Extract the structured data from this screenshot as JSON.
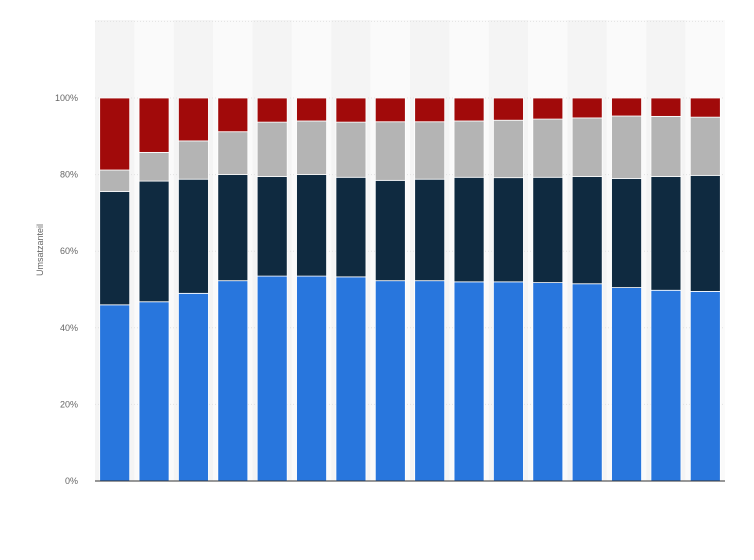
{
  "chart_data": {
    "type": "bar",
    "stacked": true,
    "ylabel": "Umsatzanteil",
    "ylim": [
      0,
      100
    ],
    "yticks": [
      "0%",
      "20%",
      "40%",
      "60%",
      "80%",
      "100%"
    ],
    "bar_count": 16,
    "series": [
      {
        "values": [
          46,
          46.8,
          49,
          52.3,
          53.5,
          53.5,
          53.3,
          52.3,
          52.3,
          52,
          52,
          51.8,
          51.5,
          50.5,
          49.8,
          49.5
        ]
      },
      {
        "values": [
          29.6,
          31.5,
          29.8,
          27.7,
          26,
          26.5,
          26,
          26.2,
          26.5,
          27.3,
          27.2,
          27.5,
          28,
          28.5,
          29.7,
          30.3
        ]
      },
      {
        "values": [
          5.6,
          7.5,
          10,
          11.2,
          14.2,
          14,
          14.4,
          15.3,
          15,
          14.7,
          15,
          15.2,
          15.3,
          16.3,
          15.7,
          15.2
        ]
      },
      {
        "values": [
          18.8,
          14.2,
          11.2,
          8.8,
          6.3,
          6,
          6.3,
          6.2,
          6.2,
          6,
          5.8,
          5.5,
          5.2,
          4.7,
          4.8,
          5
        ]
      }
    ],
    "colors": [
      "#2876dd",
      "#0f2a40",
      "#b4b4b4",
      "#a10a0a"
    ],
    "grid": true,
    "legend": "none"
  }
}
